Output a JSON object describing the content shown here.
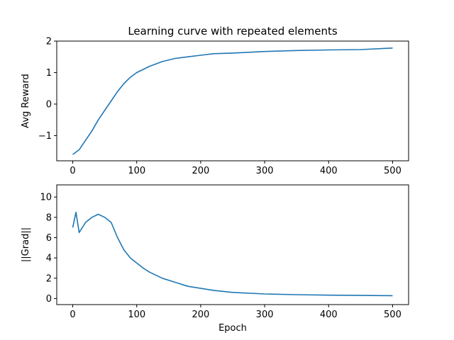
{
  "chart_data": [
    {
      "type": "line",
      "title": "Learning curve with repeated elements",
      "xlabel": "",
      "ylabel": "Avg Reward",
      "xlim": [
        -25,
        525
      ],
      "ylim": [
        -1.8,
        2.0
      ],
      "xticks": [
        0,
        100,
        200,
        300,
        400,
        500
      ],
      "yticks": [
        -1,
        0,
        1,
        2
      ],
      "ytick_labels": [
        "−1",
        "0",
        "1",
        "2"
      ],
      "grid": false,
      "color": "#1f77b4",
      "x": [
        0,
        10,
        20,
        30,
        40,
        50,
        60,
        70,
        80,
        90,
        100,
        120,
        140,
        160,
        180,
        200,
        220,
        250,
        300,
        350,
        400,
        450,
        500
      ],
      "y": [
        -1.6,
        -1.45,
        -1.15,
        -0.85,
        -0.5,
        -0.2,
        0.1,
        0.4,
        0.65,
        0.85,
        1.0,
        1.2,
        1.35,
        1.45,
        1.5,
        1.55,
        1.6,
        1.62,
        1.67,
        1.7,
        1.72,
        1.73,
        1.78
      ]
    },
    {
      "type": "line",
      "title": "",
      "xlabel": "Epoch",
      "ylabel": "||Grad||",
      "xlim": [
        -25,
        525
      ],
      "ylim": [
        -0.6,
        11.2
      ],
      "xticks": [
        0,
        100,
        200,
        300,
        400,
        500
      ],
      "yticks": [
        0,
        2,
        4,
        6,
        8,
        10
      ],
      "ytick_labels": [
        "0",
        "2",
        "4",
        "6",
        "8",
        "10"
      ],
      "grid": false,
      "color": "#1f77b4",
      "x": [
        0,
        5,
        10,
        20,
        30,
        40,
        50,
        60,
        70,
        80,
        90,
        100,
        110,
        120,
        140,
        160,
        180,
        200,
        220,
        250,
        300,
        350,
        400,
        450,
        500
      ],
      "y": [
        7.0,
        8.5,
        6.5,
        7.5,
        8.0,
        8.3,
        8.0,
        7.5,
        6.0,
        4.8,
        4.0,
        3.5,
        3.0,
        2.6,
        2.0,
        1.6,
        1.2,
        1.0,
        0.8,
        0.6,
        0.45,
        0.38,
        0.33,
        0.3,
        0.28
      ]
    }
  ]
}
